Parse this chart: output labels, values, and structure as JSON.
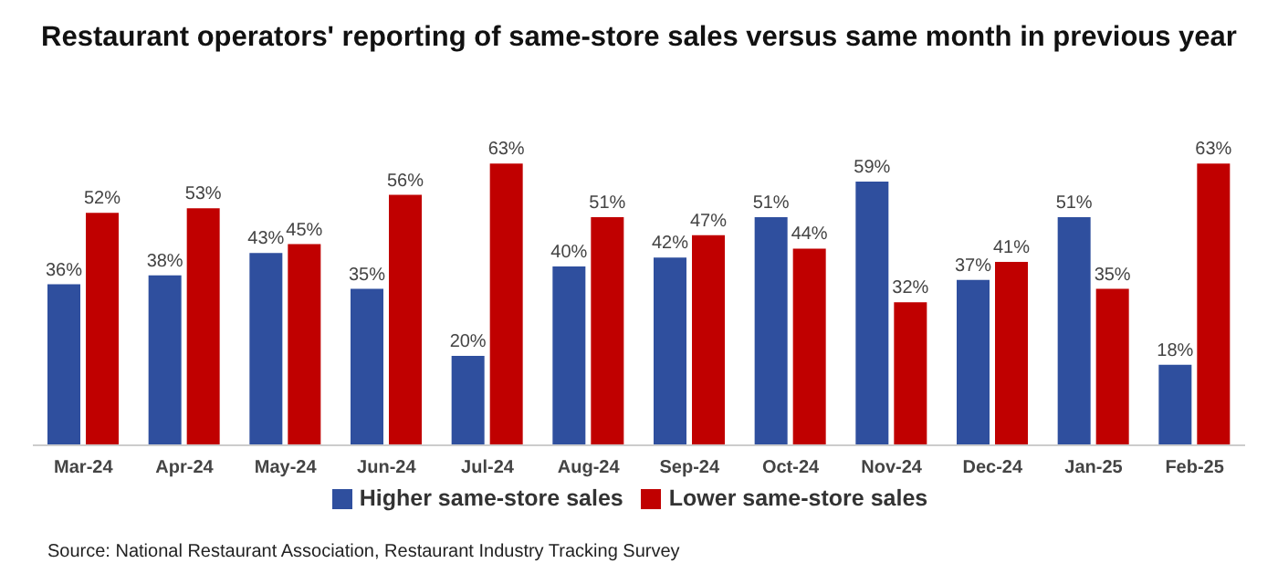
{
  "chart_data": {
    "type": "bar",
    "title": "Restaurant operators' reporting of same-store sales versus same month in previous year",
    "categories": [
      "Mar-24",
      "Apr-24",
      "May-24",
      "Jun-24",
      "Jul-24",
      "Aug-24",
      "Sep-24",
      "Oct-24",
      "Nov-24",
      "Dec-24",
      "Jan-25",
      "Feb-25"
    ],
    "series": [
      {
        "name": "Higher same-store sales",
        "color": "#2f4f9e",
        "values": [
          36,
          38,
          43,
          35,
          20,
          40,
          42,
          51,
          59,
          37,
          51,
          18
        ],
        "value_labels": [
          "36%",
          "38%",
          "43%",
          "35%",
          "20%",
          "40%",
          "42%",
          "51%",
          "59%",
          "37%",
          "51%",
          "18%"
        ]
      },
      {
        "name": "Lower same-store sales",
        "color": "#c00000",
        "values": [
          52,
          53,
          45,
          56,
          63,
          51,
          47,
          44,
          32,
          41,
          35,
          63
        ],
        "value_labels": [
          "52%",
          "53%",
          "45%",
          "56%",
          "63%",
          "51%",
          "47%",
          "44%",
          "32%",
          "41%",
          "35%",
          "63%"
        ]
      }
    ],
    "tick_labels": "x",
    "legend": "bottom",
    "annotations": [
      "Source: National Restaurant Association, Restaurant Industry Tracking Survey"
    ]
  }
}
